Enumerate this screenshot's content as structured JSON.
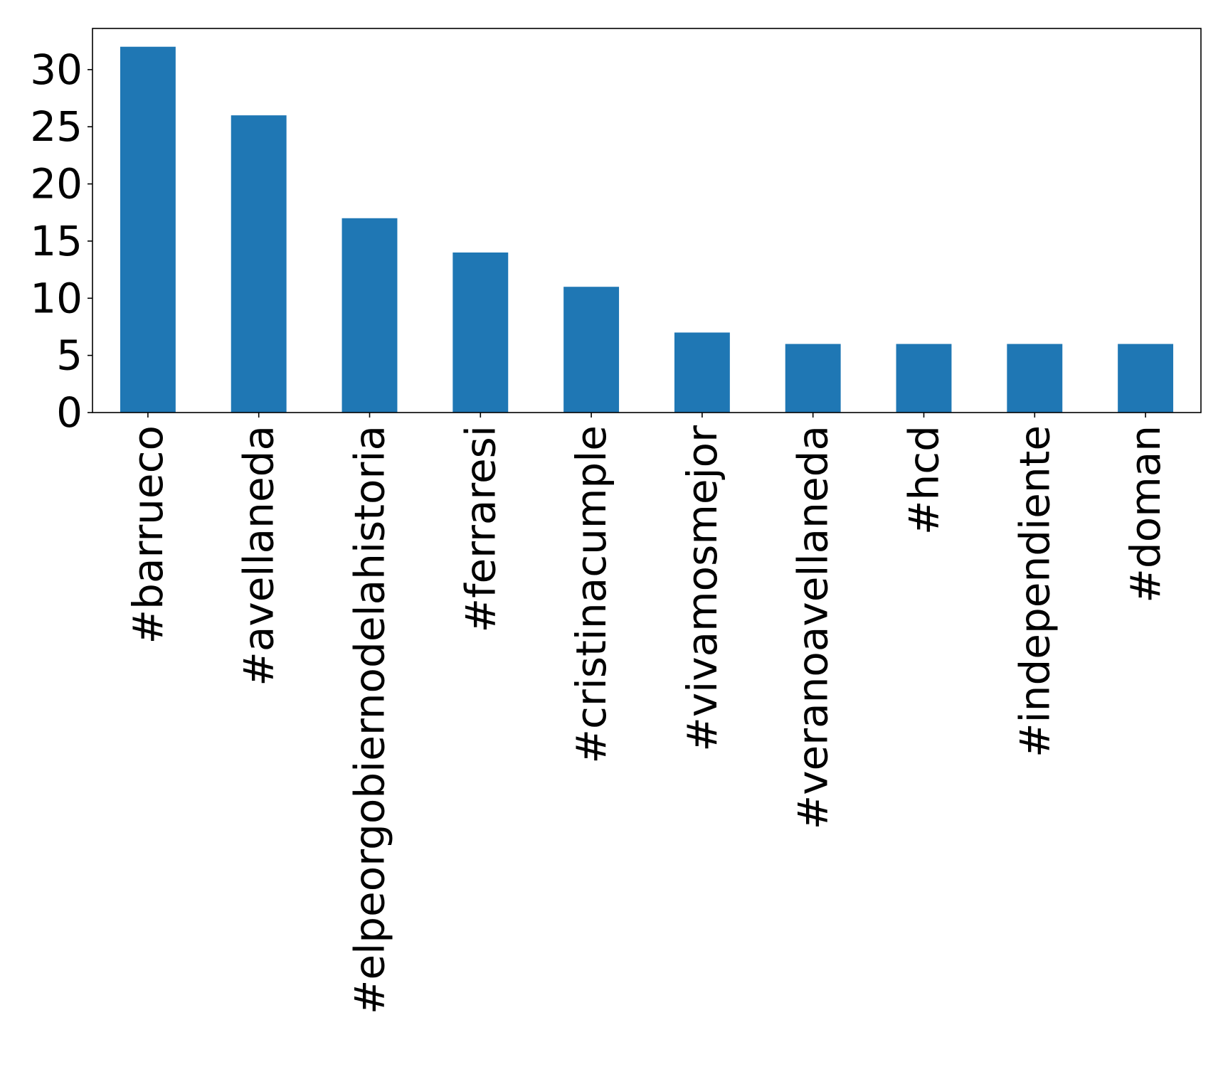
{
  "chart_data": {
    "type": "bar",
    "title": "",
    "xlabel": "",
    "ylabel": "",
    "categories": [
      "#barrueco",
      "#avellaneda",
      "#elpeorgobiernodelahistoria",
      "#ferraresi",
      "#cristinacumple",
      "#vivamosmejor",
      "#veranoavellaneda",
      "#hcd",
      "#independiente",
      "#doman"
    ],
    "values": [
      32,
      26,
      17,
      14,
      11,
      7,
      6,
      6,
      6,
      6
    ],
    "ylim": [
      0,
      33.6
    ],
    "yticks": [
      0,
      5,
      10,
      15,
      20,
      25,
      30
    ],
    "ytick_labels": [
      "0",
      "5",
      "10",
      "15",
      "20",
      "25",
      "30"
    ],
    "grid": false,
    "legend": "none",
    "bar_color": "#1f77b4"
  }
}
